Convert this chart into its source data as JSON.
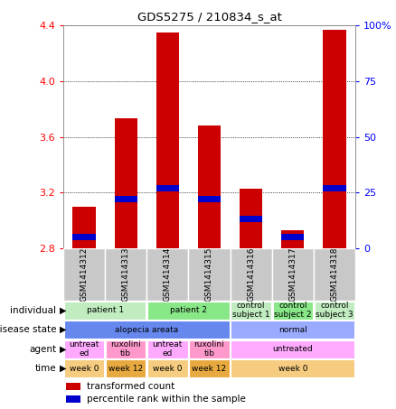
{
  "title": "GDS5275 / 210834_s_at",
  "samples": [
    "GSM1414312",
    "GSM1414313",
    "GSM1414314",
    "GSM1414315",
    "GSM1414316",
    "GSM1414317",
    "GSM1414318"
  ],
  "bar_values": [
    3.1,
    3.73,
    4.35,
    3.68,
    3.23,
    2.93,
    4.37
  ],
  "bar_base": 2.8,
  "percentile_fractions": [
    0.05,
    0.22,
    0.27,
    0.22,
    0.13,
    0.05,
    0.27
  ],
  "ylim": [
    2.8,
    4.4
  ],
  "y2lim": [
    0,
    100
  ],
  "yticks": [
    2.8,
    3.2,
    3.6,
    4.0,
    4.4
  ],
  "y2ticks": [
    0,
    25,
    50,
    75,
    100
  ],
  "bar_color": "#cc0000",
  "percentile_color": "#0000cc",
  "sample_bg_color": "#c8c8c8",
  "annotation_rows": [
    {
      "label": "individual",
      "cells": [
        {
          "text": "patient 1",
          "span": 2,
          "color": "#c0ecc0"
        },
        {
          "text": "patient 2",
          "span": 2,
          "color": "#88e888"
        },
        {
          "text": "control\nsubject 1",
          "span": 1,
          "color": "#c0ecc0"
        },
        {
          "text": "control\nsubject 2",
          "span": 1,
          "color": "#88e888"
        },
        {
          "text": "control\nsubject 3",
          "span": 1,
          "color": "#c0ecc0"
        }
      ]
    },
    {
      "label": "disease state",
      "cells": [
        {
          "text": "alopecia areata",
          "span": 4,
          "color": "#6688ee"
        },
        {
          "text": "normal",
          "span": 3,
          "color": "#99aaff"
        }
      ]
    },
    {
      "label": "agent",
      "cells": [
        {
          "text": "untreat\ned",
          "span": 1,
          "color": "#ffaaff"
        },
        {
          "text": "ruxolini\ntib",
          "span": 1,
          "color": "#ff99cc"
        },
        {
          "text": "untreat\ned",
          "span": 1,
          "color": "#ffaaff"
        },
        {
          "text": "ruxolini\ntib",
          "span": 1,
          "color": "#ff99cc"
        },
        {
          "text": "untreated",
          "span": 3,
          "color": "#ffaaff"
        }
      ]
    },
    {
      "label": "time",
      "cells": [
        {
          "text": "week 0",
          "span": 1,
          "color": "#f5cc80"
        },
        {
          "text": "week 12",
          "span": 1,
          "color": "#e8aa40"
        },
        {
          "text": "week 0",
          "span": 1,
          "color": "#f5cc80"
        },
        {
          "text": "week 12",
          "span": 1,
          "color": "#e8aa40"
        },
        {
          "text": "week 0",
          "span": 3,
          "color": "#f5cc80"
        }
      ]
    }
  ],
  "legend": [
    {
      "label": "transformed count",
      "color": "#cc0000"
    },
    {
      "label": "percentile rank within the sample",
      "color": "#0000cc"
    }
  ]
}
